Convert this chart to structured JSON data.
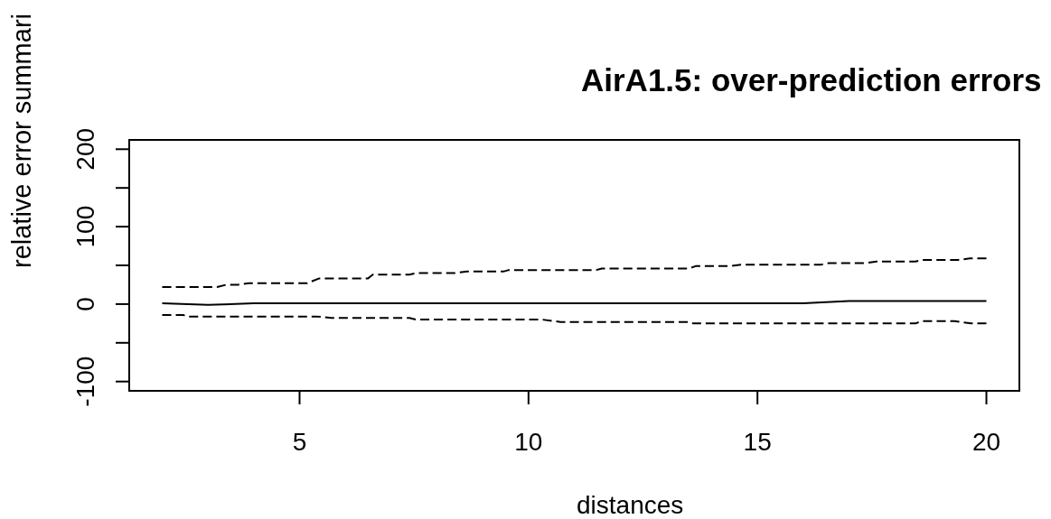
{
  "chart_data": {
    "type": "line",
    "title": "AirA1.5: over-prediction errors",
    "xlabel": "distances",
    "ylabel": "relative error summari",
    "xlim": [
      1.28,
      20.72
    ],
    "ylim": [
      -112,
      212
    ],
    "xticks": [
      5,
      10,
      15,
      20
    ],
    "yticks": [
      -100,
      {
        "value": -50,
        "label": null
      },
      0,
      {
        "value": 50,
        "label": null
      },
      100,
      {
        "value": 150,
        "label": null
      },
      200
    ],
    "series": [
      {
        "color": "#000000",
        "line_style": "solid",
        "x": [
          2,
          3,
          4,
          16,
          17,
          20
        ],
        "values": [
          1,
          -1,
          1,
          1,
          4,
          4
        ]
      },
      {
        "color": "#000000",
        "line_style": "dashed",
        "x": [
          2,
          3.2,
          3.4,
          3.65,
          3.9,
          5.17,
          5.42,
          6.49,
          6.6,
          7.4,
          7.54,
          8.38,
          8.66,
          9.45,
          9.57,
          11.48,
          11.6,
          13.5,
          13.65,
          14.4,
          14.64,
          16.4,
          16.56,
          17.35,
          17.6,
          18.45,
          18.59,
          19.38,
          19.64,
          20
        ],
        "values": [
          22,
          22,
          25,
          25,
          27,
          27,
          33,
          33,
          38,
          38,
          40,
          40,
          42,
          42,
          44,
          44,
          46,
          46,
          49,
          49,
          51,
          51,
          53,
          53,
          55,
          55,
          57,
          57,
          59,
          59
        ]
      },
      {
        "color": "#000000",
        "line_style": "dashed",
        "x": [
          2,
          2.46,
          2.54,
          5.37,
          5.7,
          7.4,
          7.54,
          10.3,
          10.7,
          13.5,
          13.6,
          18.45,
          18.59,
          19.3,
          19.66,
          20
        ],
        "values": [
          -14,
          -14,
          -16,
          -16,
          -18,
          -18,
          -20,
          -20,
          -23,
          -23,
          -25,
          -25,
          -22,
          -22,
          -25,
          -25
        ]
      }
    ]
  }
}
